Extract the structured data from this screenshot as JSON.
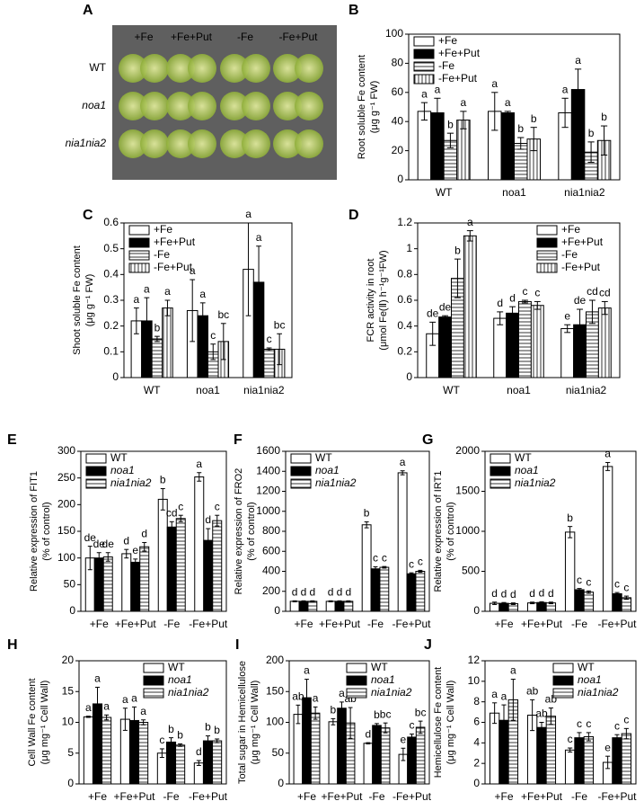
{
  "photo": {
    "panel_label": "A",
    "column_labels": [
      "+Fe",
      "+Fe+Put",
      "-Fe",
      "-Fe+Put"
    ],
    "row_labels": [
      "WT",
      "noa1",
      "nia1nia2"
    ]
  },
  "chart_data": [
    {
      "type": "bar",
      "panel_label": "B",
      "ylabel": [
        "Root soluble Fe content",
        "(μg g⁻¹ FW)"
      ],
      "categories": [
        "WT",
        "noa1",
        "nia1nia2"
      ],
      "ylim": [
        0,
        100
      ],
      "yticks": [
        0,
        20,
        40,
        60,
        80,
        100
      ],
      "legend": "upper left",
      "series": [
        {
          "name": "+Fe",
          "color": "#ffffff",
          "values": [
            47,
            47,
            46
          ],
          "errors": [
            6,
            13,
            10
          ],
          "letters": [
            "a",
            "a",
            "a"
          ]
        },
        {
          "name": "+Fe+Put",
          "color": "#000000",
          "values": [
            46,
            46,
            62
          ],
          "errors": [
            10,
            1,
            14
          ],
          "letters": [
            "a",
            "a",
            "a"
          ]
        },
        {
          "name": "-Fe",
          "color": "#ffffff",
          "hatch": "horizontal",
          "values": [
            27,
            25,
            19
          ],
          "errors": [
            5,
            4,
            7
          ],
          "letters": [
            "b",
            "b",
            "b"
          ]
        },
        {
          "name": "-Fe+Put",
          "color": "#ffffff",
          "hatch": "vertical",
          "values": [
            41,
            28,
            27
          ],
          "errors": [
            6,
            8,
            10
          ],
          "letters": [
            "a",
            "b",
            "b"
          ]
        }
      ]
    },
    {
      "type": "bar",
      "panel_label": "C",
      "ylabel": [
        "Shoot soluble Fe content",
        "(μg g⁻¹ FW)"
      ],
      "categories": [
        "WT",
        "noa1",
        "nia1nia2"
      ],
      "ylim": [
        0,
        0.6
      ],
      "yticks": [
        0,
        0.1,
        0.2,
        0.3,
        0.4,
        0.5,
        0.6
      ],
      "legend": "upper left",
      "series": [
        {
          "name": "+Fe",
          "color": "#ffffff",
          "values": [
            0.22,
            0.26,
            0.42
          ],
          "errors": [
            0.05,
            0.12,
            0.18
          ],
          "letters": [
            "a",
            "a",
            "a"
          ]
        },
        {
          "name": "+Fe+Put",
          "color": "#000000",
          "values": [
            0.22,
            0.24,
            0.37
          ],
          "errors": [
            0.09,
            0.05,
            0.14
          ],
          "letters": [
            "a",
            "a",
            "a"
          ]
        },
        {
          "name": "-Fe",
          "color": "#ffffff",
          "hatch": "horizontal",
          "values": [
            0.15,
            0.1,
            0.11
          ],
          "errors": [
            0.01,
            0.03,
            0.005
          ],
          "letters": [
            "b",
            "c",
            "c"
          ]
        },
        {
          "name": "-Fe+Put",
          "color": "#ffffff",
          "hatch": "vertical",
          "values": [
            0.27,
            0.14,
            0.11
          ],
          "errors": [
            0.03,
            0.07,
            0.06
          ],
          "letters": [
            "a",
            "bc",
            "bc"
          ]
        }
      ]
    },
    {
      "type": "bar",
      "panel_label": "D",
      "ylabel": [
        "FCR activity in root",
        "(μmol Fe(Ⅱ) h⁻¹g⁻¹FW)"
      ],
      "categories": [
        "WT",
        "noa1",
        "nia1nia2"
      ],
      "ylim": [
        0,
        1.2
      ],
      "yticks": [
        0,
        0.2,
        0.4,
        0.6,
        0.8,
        1,
        1.2
      ],
      "legend": "upper right",
      "series": [
        {
          "name": "+Fe",
          "color": "#ffffff",
          "values": [
            0.34,
            0.46,
            0.38
          ],
          "errors": [
            0.09,
            0.05,
            0.03
          ],
          "letters": [
            "de",
            "d",
            "e"
          ]
        },
        {
          "name": "+Fe+Put",
          "color": "#000000",
          "values": [
            0.47,
            0.5,
            0.41
          ],
          "errors": [
            0.01,
            0.05,
            0.12
          ],
          "letters": [
            "de",
            "d",
            "de"
          ]
        },
        {
          "name": "-Fe",
          "color": "#ffffff",
          "hatch": "horizontal",
          "values": [
            0.77,
            0.59,
            0.51
          ],
          "errors": [
            0.15,
            0.01,
            0.09
          ],
          "letters": [
            "b",
            "c",
            "cd"
          ]
        },
        {
          "name": "-Fe+Put",
          "color": "#ffffff",
          "hatch": "vertical",
          "values": [
            1.1,
            0.56,
            0.54
          ],
          "errors": [
            0.04,
            0.03,
            0.05
          ],
          "letters": [
            "a",
            "c",
            "cd"
          ]
        }
      ]
    },
    {
      "type": "bar",
      "panel_label": "E",
      "ylabel": [
        "Relative expression of FIT1",
        "(% of control)"
      ],
      "categories": [
        "+Fe",
        "+Fe+Put",
        "-Fe",
        "-Fe+Put"
      ],
      "ylim": [
        0,
        300
      ],
      "yticks": [
        0,
        50,
        100,
        150,
        200,
        250,
        300
      ],
      "legend": "upper left",
      "series": [
        {
          "name": "WT",
          "color": "#ffffff",
          "values": [
            100,
            108,
            210,
            252
          ],
          "errors": [
            22,
            8,
            20,
            8
          ],
          "letters": [
            "de",
            "d",
            "b",
            "a"
          ]
        },
        {
          "name": "noa1",
          "color": "#000000",
          "values": [
            100,
            92,
            158,
            133
          ],
          "errors": [
            10,
            6,
            10,
            22
          ],
          "letters": [
            "de",
            "e",
            "cd",
            "d"
          ]
        },
        {
          "name": "nia1nia2",
          "color": "#ffffff",
          "hatch": "horizontal",
          "values": [
            102,
            121,
            174,
            170
          ],
          "errors": [
            8,
            8,
            6,
            10
          ],
          "letters": [
            "de",
            "d",
            "c",
            "c"
          ]
        }
      ]
    },
    {
      "type": "bar",
      "panel_label": "F",
      "ylabel": [
        "Relative expression of FRO2",
        "(% of control)"
      ],
      "categories": [
        "+Fe",
        "+Fe+Put",
        "-Fe",
        "-Fe+Put"
      ],
      "ylim": [
        0,
        1600
      ],
      "yticks": [
        0,
        200,
        400,
        600,
        800,
        1000,
        1200,
        1400,
        1600
      ],
      "legend": "upper left",
      "series": [
        {
          "name": "WT",
          "color": "#ffffff",
          "values": [
            100,
            100,
            865,
            1385
          ],
          "errors": [
            5,
            5,
            30,
            20
          ],
          "letters": [
            "d",
            "d",
            "b",
            "a"
          ]
        },
        {
          "name": "noa1",
          "color": "#000000",
          "values": [
            100,
            100,
            425,
            375
          ],
          "errors": [
            5,
            5,
            20,
            10
          ],
          "letters": [
            "d",
            "d",
            "c",
            "c"
          ]
        },
        {
          "name": "nia1nia2",
          "color": "#ffffff",
          "hatch": "horizontal",
          "values": [
            100,
            100,
            440,
            400
          ],
          "errors": [
            5,
            5,
            8,
            10
          ],
          "letters": [
            "d",
            "d",
            "c",
            "c"
          ]
        }
      ]
    },
    {
      "type": "bar",
      "panel_label": "G",
      "ylabel": [
        "Relative expression of IRT1",
        "(% of control)"
      ],
      "categories": [
        "+Fe",
        "+Fe+Put",
        "-Fe",
        "-Fe+Put"
      ],
      "ylim": [
        0,
        2000
      ],
      "yticks": [
        0,
        500,
        1000,
        1500,
        2000
      ],
      "legend": "upper left",
      "series": [
        {
          "name": "WT",
          "color": "#ffffff",
          "values": [
            100,
            105,
            990,
            1810
          ],
          "errors": [
            15,
            10,
            70,
            50
          ],
          "letters": [
            "d",
            "d",
            "b",
            "a"
          ]
        },
        {
          "name": "noa1",
          "color": "#000000",
          "values": [
            100,
            110,
            270,
            220
          ],
          "errors": [
            10,
            10,
            15,
            15
          ],
          "letters": [
            "d",
            "d",
            "c",
            "c"
          ]
        },
        {
          "name": "nia1nia2",
          "color": "#ffffff",
          "hatch": "horizontal",
          "values": [
            95,
            105,
            240,
            170
          ],
          "errors": [
            10,
            10,
            15,
            20
          ],
          "letters": [
            "d",
            "d",
            "c",
            "c"
          ]
        }
      ]
    },
    {
      "type": "bar",
      "panel_label": "H",
      "ylabel": [
        "Cell Wall Fe content",
        "(μg mg⁻¹ Cell Wall)"
      ],
      "categories": [
        "+Fe",
        "+Fe+Put",
        "-Fe",
        "-Fe+Put"
      ],
      "ylim": [
        0,
        20
      ],
      "yticks": [
        0,
        5,
        10,
        15,
        20
      ],
      "legend": "upper right",
      "series": [
        {
          "name": "WT",
          "color": "#ffffff",
          "values": [
            10.9,
            10.5,
            5,
            3.4
          ],
          "errors": [
            0.1,
            1.8,
            0.7,
            0.4
          ],
          "letters": [
            "a",
            "a",
            "c",
            "d"
          ]
        },
        {
          "name": "noa1",
          "color": "#000000",
          "values": [
            13,
            10.3,
            6.8,
            7
          ],
          "errors": [
            2.7,
            2.2,
            0.7,
            0.8
          ],
          "letters": [
            "a",
            "a",
            "b",
            "b"
          ]
        },
        {
          "name": "nia1nia2",
          "color": "#ffffff",
          "hatch": "horizontal",
          "values": [
            10.8,
            10,
            6.3,
            7
          ],
          "errors": [
            0.4,
            0.4,
            0.2,
            0.3
          ],
          "letters": [
            "a",
            "a",
            "b",
            "b"
          ]
        }
      ]
    },
    {
      "type": "bar",
      "panel_label": "I",
      "ylabel": [
        "Total sugar in Hemicellulose",
        "(μg mg⁻¹ Cell Wall)"
      ],
      "categories": [
        "+Fe",
        "+Fe+Put",
        "-Fe",
        "-Fe+Put"
      ],
      "ylim": [
        0,
        200
      ],
      "yticks": [
        0,
        50,
        100,
        150,
        200
      ],
      "legend": "upper right",
      "series": [
        {
          "name": "WT",
          "color": "#ffffff",
          "values": [
            113,
            101,
            66,
            48
          ],
          "errors": [
            15,
            5,
            1,
            10
          ],
          "letters": [
            "ab",
            "b",
            "d",
            "e"
          ]
        },
        {
          "name": "noa1",
          "color": "#000000",
          "values": [
            140,
            123,
            95,
            76
          ],
          "errors": [
            30,
            10,
            3,
            5
          ],
          "letters": [
            "a",
            "a",
            "b",
            "c"
          ]
        },
        {
          "name": "nia1nia2",
          "color": "#ffffff",
          "hatch": "horizontal",
          "values": [
            115,
            99,
            91,
            92
          ],
          "errors": [
            10,
            25,
            8,
            10
          ],
          "letters": [
            "a",
            "ab",
            "bc",
            "bc"
          ]
        }
      ]
    },
    {
      "type": "bar",
      "panel_label": "J",
      "ylabel": [
        "Hemicellulose Fe content",
        "(μg mg⁻¹ Cell Wall)"
      ],
      "categories": [
        "+Fe",
        "+Fe+Put",
        "-Fe",
        "-Fe+Put"
      ],
      "ylim": [
        0,
        12
      ],
      "yticks": [
        0,
        2,
        4,
        6,
        8,
        10,
        12
      ],
      "legend": "upper right",
      "series": [
        {
          "name": "WT",
          "color": "#ffffff",
          "values": [
            6.9,
            6.7,
            3.3,
            2.1
          ],
          "errors": [
            1,
            1.5,
            0.2,
            0.6
          ],
          "letters": [
            "a",
            "ab",
            "c",
            "e"
          ]
        },
        {
          "name": "noa1",
          "color": "#000000",
          "values": [
            6.2,
            5.5,
            4.5,
            4.5
          ],
          "errors": [
            1.5,
            0.5,
            0.5,
            0.3
          ],
          "letters": [
            "a",
            "ab",
            "c",
            "c"
          ]
        },
        {
          "name": "nia1nia2",
          "color": "#ffffff",
          "hatch": "horizontal",
          "values": [
            8.2,
            6.6,
            4.6,
            4.9
          ],
          "errors": [
            2,
            0.8,
            0.4,
            0.5
          ],
          "letters": [
            "a",
            "ab",
            "c",
            "c"
          ]
        }
      ]
    }
  ]
}
